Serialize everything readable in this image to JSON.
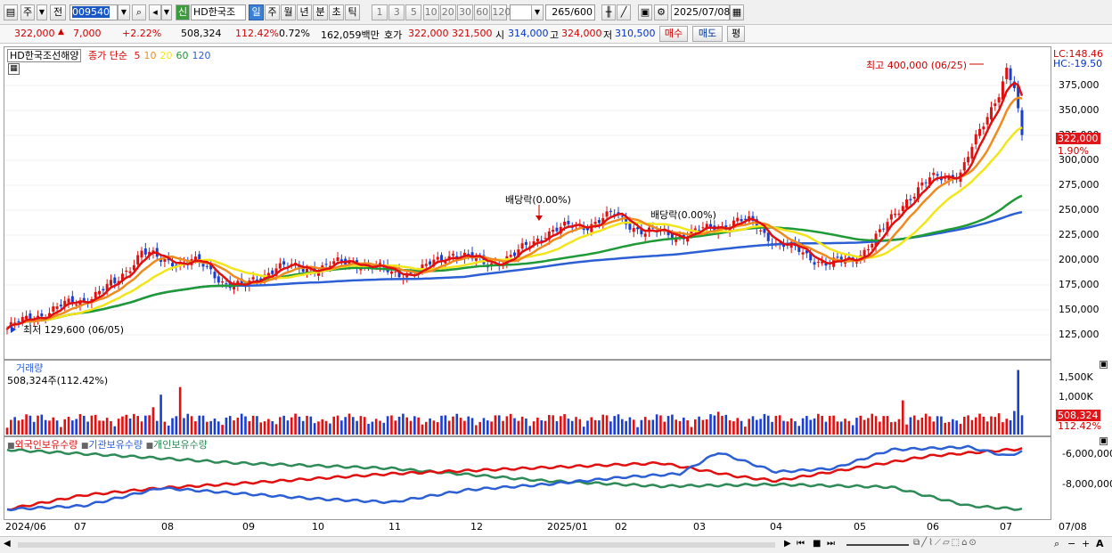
{
  "toolbar": {
    "mode_tab": "주",
    "prev_label": "전",
    "code": "009540",
    "sin_label": "신",
    "stock_name": "HD한국조선",
    "periods": [
      "일",
      "주",
      "월",
      "년",
      "분",
      "초",
      "틱"
    ],
    "active_period": "일",
    "intervals": [
      "1",
      "3",
      "5",
      "10",
      "20",
      "30",
      "60",
      "120"
    ],
    "count_value": "265",
    "count_total": "/600",
    "date": "2025/07/08"
  },
  "quote": {
    "price": "322,000",
    "change": "7,000",
    "change_pct": "+2.22%",
    "volume": "508,324",
    "volume_ratio": "112.42%",
    "turnover": "0.72%",
    "amount": "162,059백만",
    "hoga_label": "호가",
    "bid": "322,000",
    "ask": "321,500",
    "open_label": "시",
    "open": "314,000",
    "high_label": "고",
    "high": "324,000",
    "low_label": "저",
    "low": "310,500",
    "buy_label": "매수",
    "sell_label": "매도",
    "eval_label": "평"
  },
  "price_panel": {
    "legend_name": "HD한국조선해양",
    "legend_ma_label": "종가 단순",
    "ma_periods": [
      "5",
      "10",
      "20",
      "60",
      "120"
    ],
    "ma_colors": [
      "#e01010",
      "#f08a1e",
      "#f2e51a",
      "#1f9a36",
      "#2c5fd4"
    ],
    "lc": "LC:148.46",
    "hc": "HC:-19.50",
    "y_ticks": [
      "375,000",
      "350,000",
      "325,000",
      "300,000",
      "275,000",
      "250,000",
      "225,000",
      "200,000",
      "175,000",
      "150,000",
      "125,000"
    ],
    "price_tag": "322,000",
    "pct_tag": "1.90%",
    "annotation_high": "최고 400,000 (06/25)",
    "annotation_low": "최저 129,600 (06/05)",
    "dividend_1": "배당락(0.00%)",
    "dividend_2": "배당락(0.00%)"
  },
  "volume_panel": {
    "title": "거래량",
    "value": "508,324주(112.42%)",
    "y_ticks": [
      "1,500K",
      "1,000K"
    ],
    "tag_value": "508,324",
    "tag_pct": "112.42%"
  },
  "holdings_panel": {
    "series": [
      "외국인보유수량",
      "기관보유수량",
      "개인보유수량"
    ],
    "colors": [
      "#e01010",
      "#2c5fd4",
      "#2e8b57"
    ],
    "y_ticks": [
      "-6,000,000",
      "-8,000,000"
    ]
  },
  "x_axis": [
    "2024/06",
    "07",
    "08",
    "09",
    "10",
    "11",
    "12",
    "2025/01",
    "02",
    "03",
    "04",
    "05",
    "06",
    "07",
    "07/08"
  ]
}
